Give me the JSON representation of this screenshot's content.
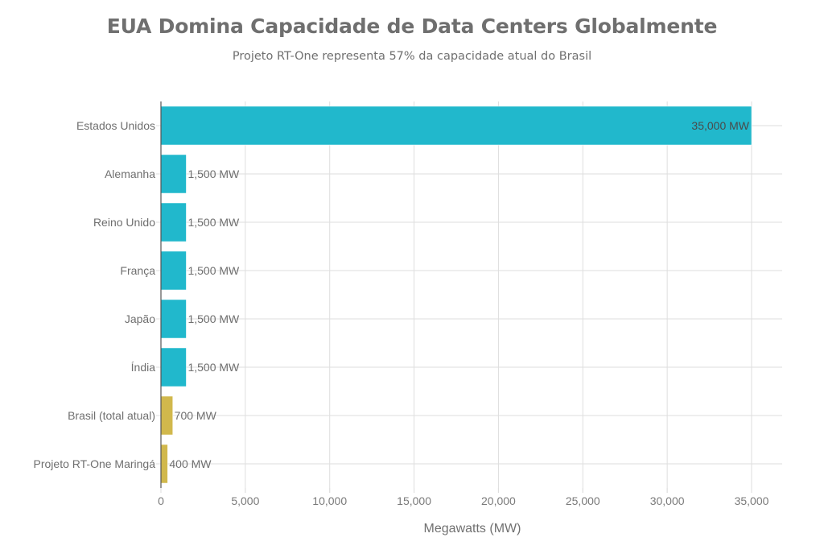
{
  "chart_data": {
    "type": "bar",
    "orientation": "horizontal",
    "title": "EUA Domina Capacidade de Data Centers Globalmente",
    "subtitle": "Projeto RT-One representa 57% da capacidade atual do Brasil",
    "xlabel": "Megawatts (MW)",
    "ylabel": "",
    "xlim": [
      0,
      35000
    ],
    "xticks": [
      0,
      5000,
      10000,
      15000,
      20000,
      25000,
      30000,
      35000
    ],
    "xtick_labels": [
      "0",
      "5,000",
      "10,000",
      "15,000",
      "20,000",
      "25,000",
      "30,000",
      "35,000"
    ],
    "grid": true,
    "categories": [
      "Estados Unidos",
      "Alemanha",
      "Reino Unido",
      "França",
      "Japão",
      "Índia",
      "Brasil (total atual)",
      "Projeto RT-One Maringá"
    ],
    "values": [
      35000,
      1500,
      1500,
      1500,
      1500,
      1500,
      700,
      400
    ],
    "data_labels": [
      "35,000 MW",
      "1,500 MW",
      "1,500 MW",
      "1,500 MW",
      "1,500 MW",
      "1,500 MW",
      "700 MW",
      "400 MW"
    ],
    "bar_colors": [
      "#21b8cc",
      "#21b8cc",
      "#21b8cc",
      "#21b8cc",
      "#21b8cc",
      "#21b8cc",
      "#d1b84c",
      "#d1b84c"
    ]
  }
}
